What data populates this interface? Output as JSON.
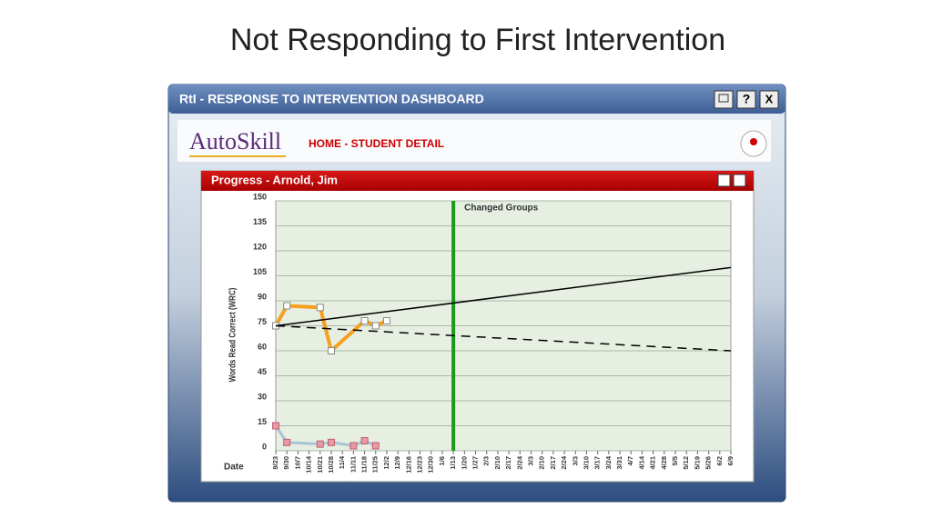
{
  "slide_title": "Not Responding to First Intervention",
  "window": {
    "title": "RtI - RESPONSE TO INTERVENTION DASHBOARD",
    "buttons": [
      "?",
      "X"
    ]
  },
  "nav": {
    "logo": "AutoSkill",
    "breadcrumb": "HOME - STUDENT DETAIL"
  },
  "panel": {
    "title": "Progress - Arnold, Jim"
  },
  "chart_data": {
    "type": "line",
    "ylabel": "Words Read Correct (WRC)",
    "xlabel": "Date",
    "categories": [
      "9/23",
      "9/30",
      "10/7",
      "10/14",
      "10/21",
      "10/28",
      "11/4",
      "11/11",
      "11/18",
      "11/25",
      "12/2",
      "12/9",
      "12/16",
      "12/23",
      "12/30",
      "1/6",
      "1/13",
      "1/20",
      "1/27",
      "2/3",
      "2/10",
      "2/17",
      "2/24",
      "3/3",
      "2/10",
      "2/17",
      "2/24",
      "3/3",
      "3/10",
      "3/17",
      "3/24",
      "3/31",
      "4/7",
      "4/14",
      "4/21",
      "4/28",
      "5/5",
      "5/12",
      "5/19",
      "5/26",
      "6/2",
      "6/9"
    ],
    "ylim": [
      0,
      150
    ],
    "yticks": [
      0,
      15,
      30,
      45,
      60,
      75,
      90,
      105,
      120,
      135,
      150
    ],
    "grid": true,
    "series": [
      {
        "color": "#f5a020",
        "marker": "hollow",
        "x": [
          "9/23",
          "9/30",
          "10/21",
          "10/28",
          "11/18",
          "11/25",
          "12/2"
        ],
        "values": [
          75,
          87,
          86,
          60,
          78,
          75,
          78
        ]
      },
      {
        "color": "#a8c4d8",
        "marker": "pink",
        "x": [
          "9/23",
          "9/30",
          "10/21",
          "10/28",
          "11/11",
          "11/18",
          "11/25"
        ],
        "values": [
          15,
          5,
          4,
          5,
          3,
          6,
          3
        ]
      },
      {
        "color": "#000000",
        "style": "solid",
        "x": [
          "9/23",
          "6/9"
        ],
        "values": [
          75,
          110
        ]
      },
      {
        "color": "#000000",
        "style": "dashed",
        "x": [
          "9/23",
          "6/9"
        ],
        "values": [
          75,
          60
        ]
      }
    ],
    "annotations": [
      {
        "text": "Changed Groups",
        "x": "1/13",
        "color": "#1a9a1a"
      }
    ]
  }
}
